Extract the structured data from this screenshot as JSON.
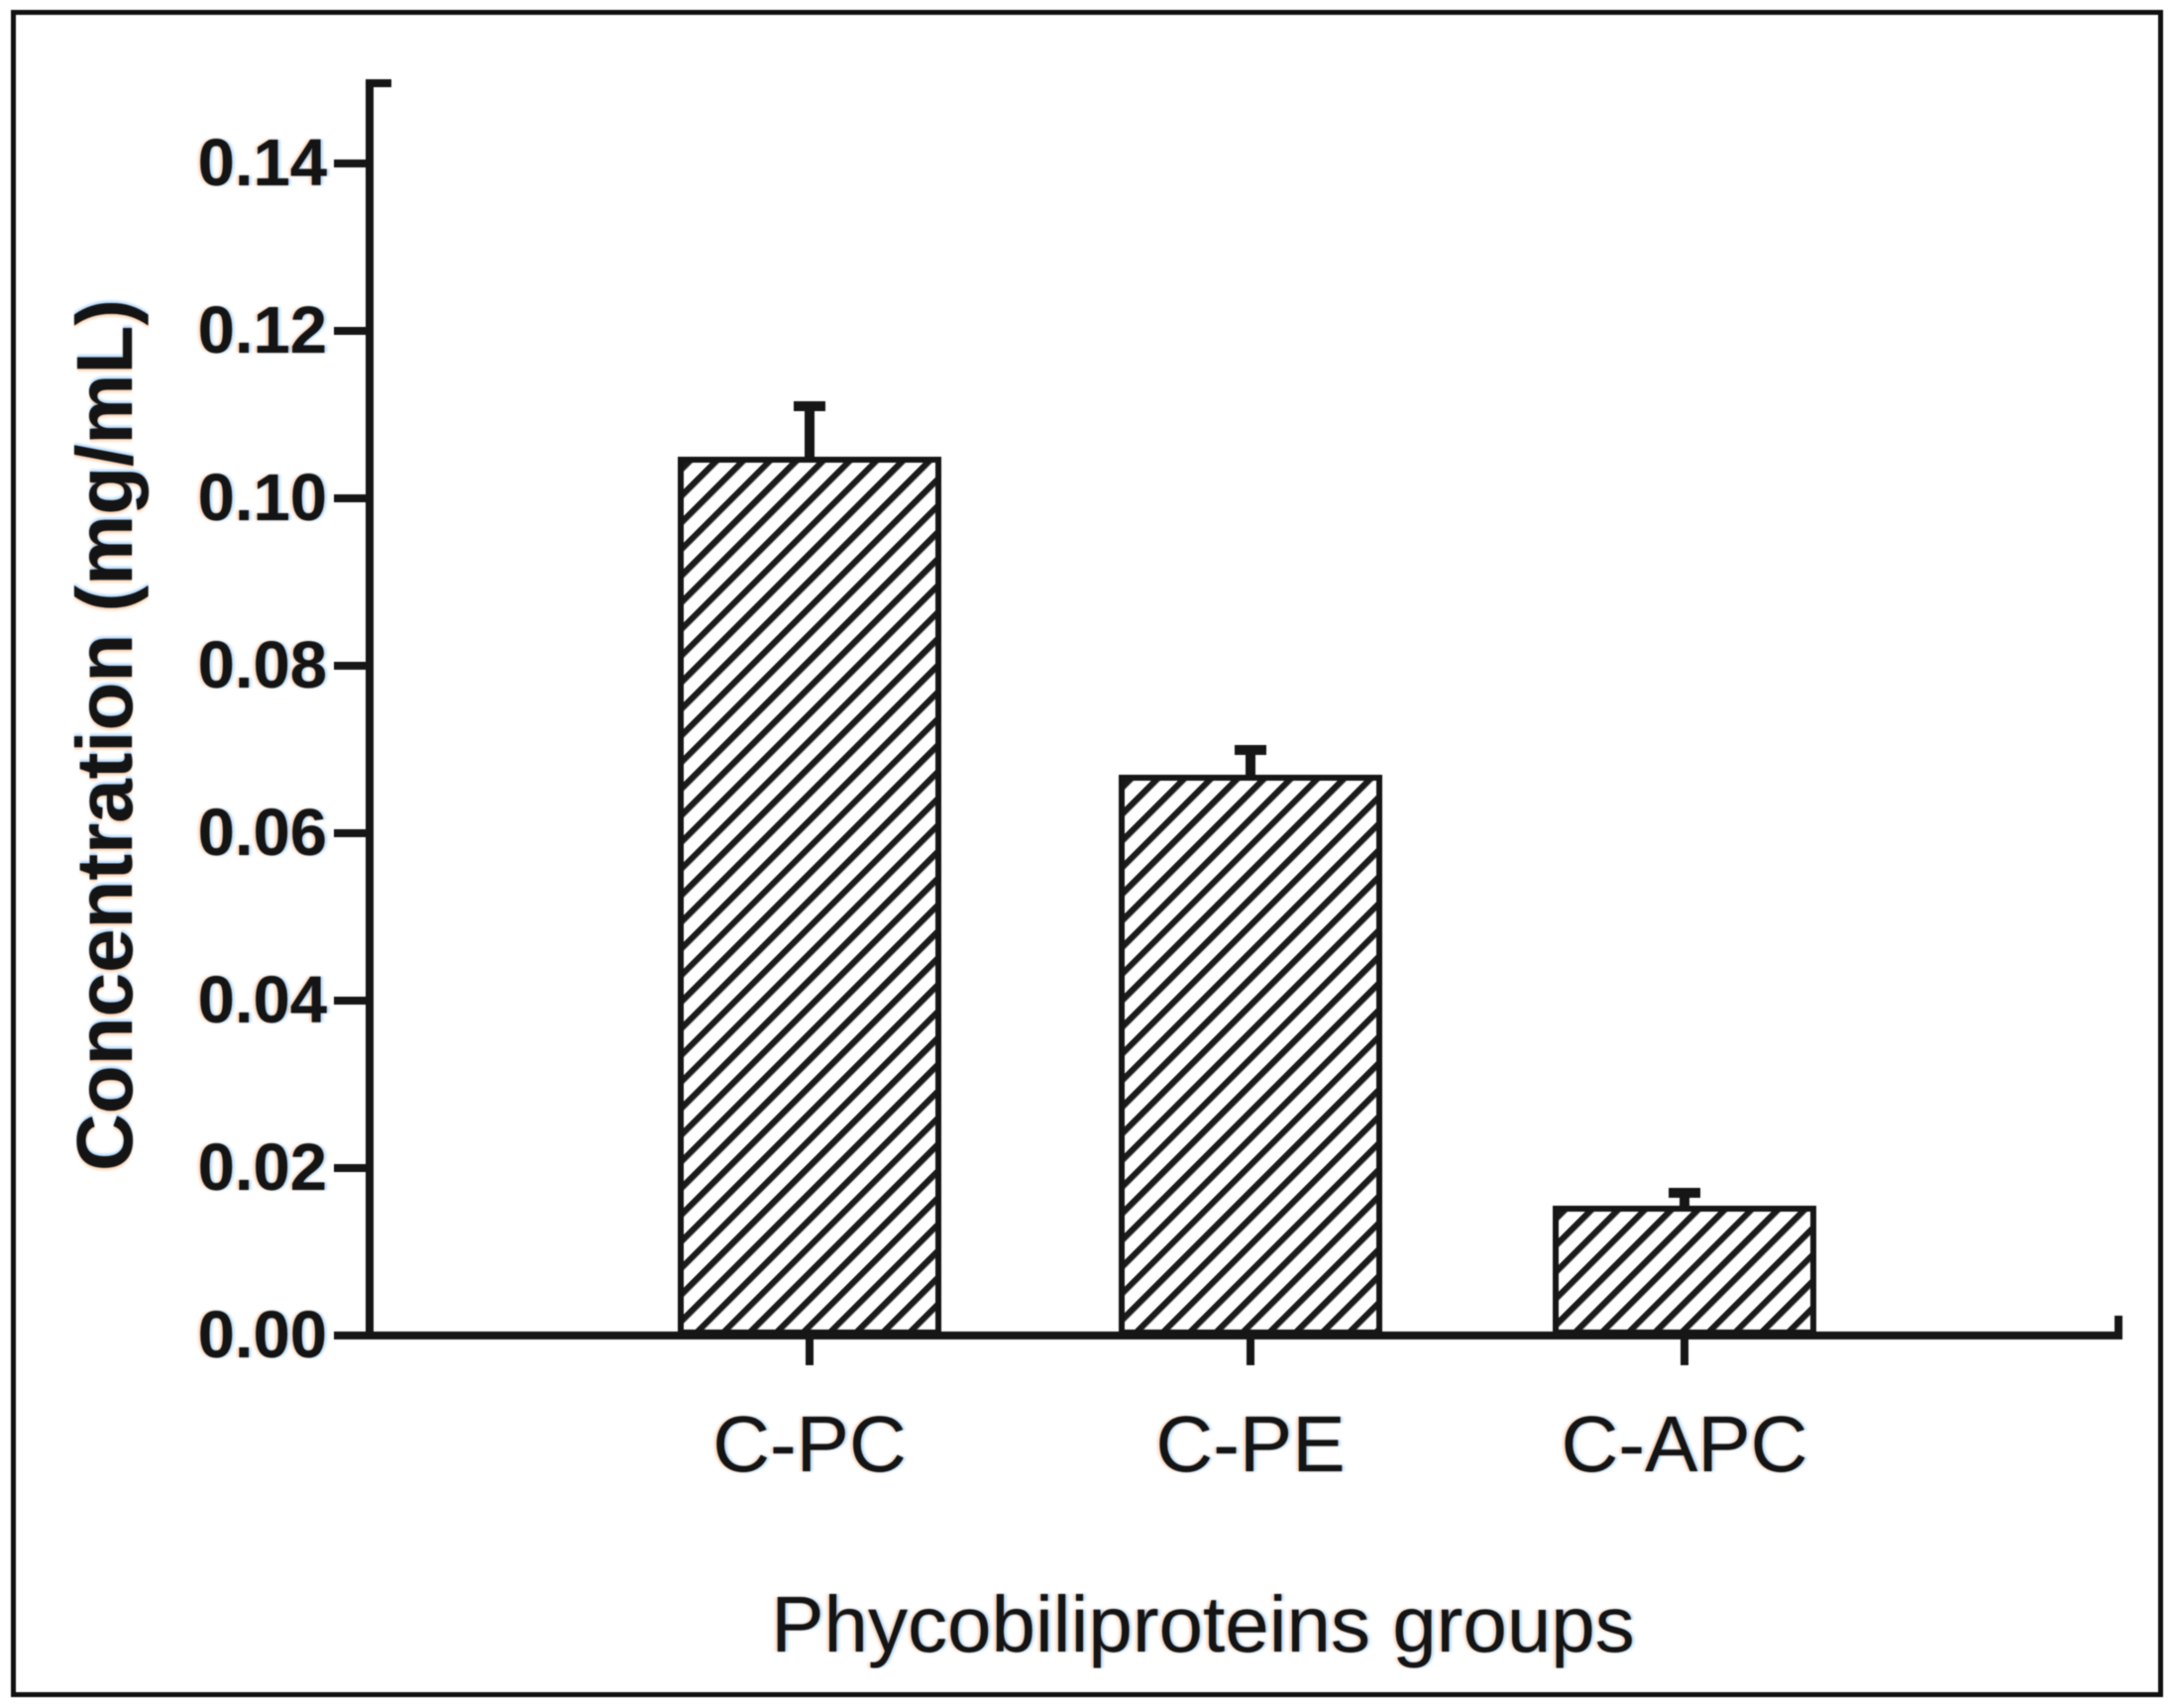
{
  "figure": {
    "background": "#ffffff",
    "frame_color": "#101010",
    "ink_color": "#161616",
    "text_color": "#141414"
  },
  "chart_data": {
    "type": "bar",
    "title": "",
    "xlabel": "Phycobiliproteins groups",
    "ylabel": "Concentration (mg/mL)",
    "categories": [
      "C-PC",
      "C-PE",
      "C-APC"
    ],
    "values": [
      0.105,
      0.067,
      0.0155
    ],
    "errors": [
      0.006,
      0.003,
      0.0015
    ],
    "error_bar_direction": "upper-only",
    "bar_fill": "white-with-diagonal-hatch",
    "hatch_direction": "forward-slash",
    "ylim": [
      0.0,
      0.15
    ],
    "ytick_values": [
      0.14,
      0.12,
      0.1,
      0.08,
      0.06,
      0.04,
      0.02,
      0.0
    ],
    "ytick_labels": [
      "0.14",
      "0.12",
      "0.10",
      "0.08",
      "0.06",
      "0.04",
      "0.02",
      "0.00"
    ],
    "grid": false,
    "legend": "none"
  }
}
